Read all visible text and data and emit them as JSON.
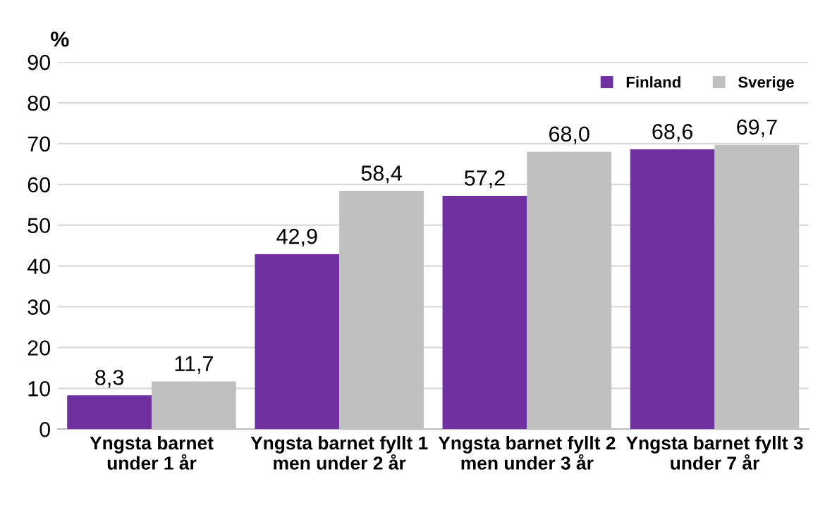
{
  "chart_data": {
    "type": "bar",
    "ylabel": "%",
    "categories": [
      "Yngsta barnet\nunder 1 år",
      "Yngsta barnet fyllt 1\nmen under 2 år",
      "Yngsta barnet fyllt 2\nmen under 3 år",
      "Yngsta barnet fyllt 3\nunder 7 år"
    ],
    "series": [
      {
        "name": "Finland",
        "color": "#7030a0",
        "values": [
          8.3,
          42.9,
          57.2,
          68.6
        ],
        "value_labels": [
          "8,3",
          "42,9",
          "57,2",
          "68,6"
        ]
      },
      {
        "name": "Sverige",
        "color": "#c0c0c0",
        "values": [
          11.7,
          58.4,
          68.0,
          69.7
        ],
        "value_labels": [
          "11,7",
          "58,4",
          "68,0",
          "69,7"
        ]
      }
    ],
    "ylim": [
      0,
      90
    ],
    "yticks": [
      0,
      10,
      20,
      30,
      40,
      50,
      60,
      70,
      80,
      90
    ],
    "grid": "y",
    "legend": "top right"
  }
}
